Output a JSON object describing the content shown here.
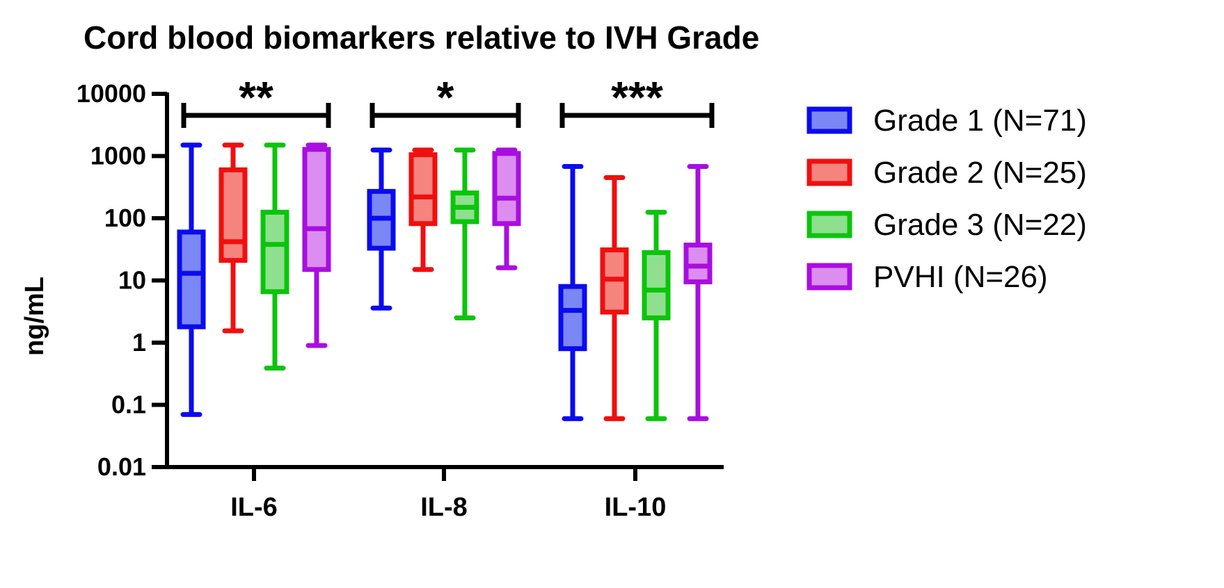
{
  "chart_data": {
    "type": "box",
    "title": "Cord blood biomarkers relative to IVH Grade",
    "ylabel": "ng/mL",
    "xlabel": "",
    "yscale": "log",
    "ylim": [
      0.01,
      10000
    ],
    "yticks": [
      {
        "value": 0.01,
        "label": "0.01"
      },
      {
        "value": 0.1,
        "label": "0.1"
      },
      {
        "value": 1,
        "label": "1"
      },
      {
        "value": 10,
        "label": "10"
      },
      {
        "value": 100,
        "label": "100"
      },
      {
        "value": 1000,
        "label": "1000"
      },
      {
        "value": 10000,
        "label": "10000"
      }
    ],
    "categories": [
      "IL-6",
      "IL-8",
      "IL-10"
    ],
    "significance": [
      "**",
      "*",
      "***"
    ],
    "legend_position": "right",
    "series": [
      {
        "name": "Grade 1 (N=71)",
        "stroke": "#0b0bf0",
        "fill": "#7b87f5",
        "boxes": [
          {
            "min": 0.07,
            "q1": 1.8,
            "median": 13,
            "q3": 60,
            "max": 1500
          },
          {
            "min": 3.6,
            "q1": 33,
            "median": 100,
            "q3": 270,
            "max": 1250
          },
          {
            "min": 0.06,
            "q1": 0.8,
            "median": 3.3,
            "q3": 8,
            "max": 680
          }
        ]
      },
      {
        "name": "Grade 2 (N=25)",
        "stroke": "#f00f0f",
        "fill": "#f5847f",
        "boxes": [
          {
            "min": 1.55,
            "q1": 21,
            "median": 42,
            "q3": 600,
            "max": 1500
          },
          {
            "min": 15,
            "q1": 82,
            "median": 220,
            "q3": 1050,
            "max": 1250
          },
          {
            "min": 0.06,
            "q1": 3.1,
            "median": 10.5,
            "q3": 31,
            "max": 450
          }
        ]
      },
      {
        "name": "Grade 3 (N=22)",
        "stroke": "#0cc40c",
        "fill": "#8ee08e",
        "boxes": [
          {
            "min": 0.39,
            "q1": 6.6,
            "median": 38,
            "q3": 125,
            "max": 1500
          },
          {
            "min": 2.5,
            "q1": 88,
            "median": 150,
            "q3": 255,
            "max": 1250
          },
          {
            "min": 0.06,
            "q1": 2.5,
            "median": 7,
            "q3": 28,
            "max": 125
          }
        ]
      },
      {
        "name": "PVHI (N=26)",
        "stroke": "#a80ee0",
        "fill": "#dc8ef0",
        "boxes": [
          {
            "min": 0.9,
            "q1": 15,
            "median": 68,
            "q3": 1280,
            "max": 1500
          },
          {
            "min": 16,
            "q1": 82,
            "median": 210,
            "q3": 1100,
            "max": 1250
          },
          {
            "min": 0.06,
            "q1": 9.5,
            "median": 17,
            "q3": 37,
            "max": 680
          }
        ]
      }
    ]
  }
}
